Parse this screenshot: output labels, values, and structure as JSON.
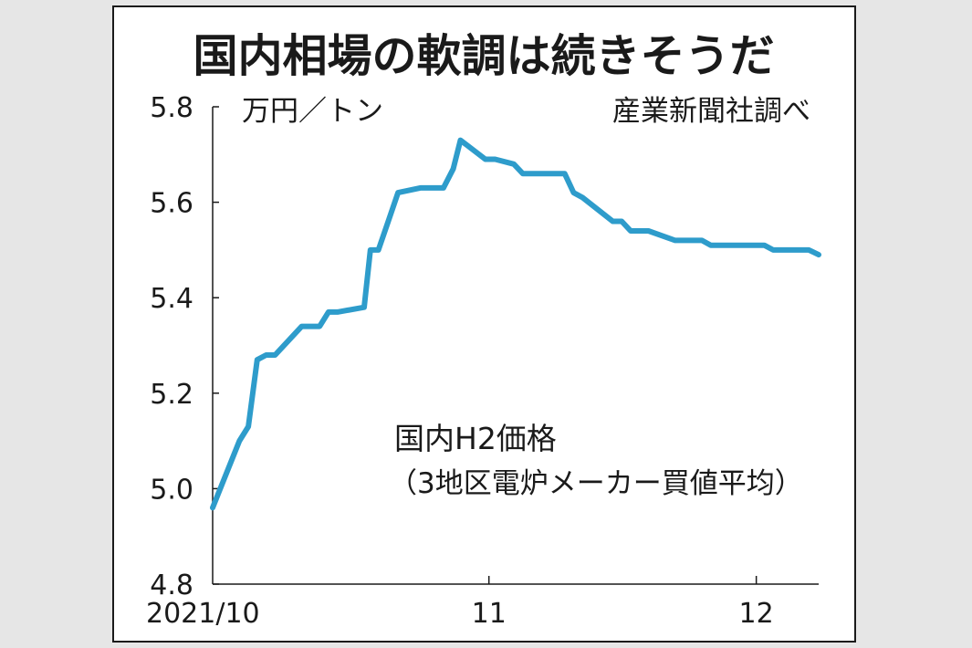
{
  "chart_data": {
    "type": "line",
    "title": "国内相場の軟調は続きそうだ",
    "ylabel": "万円／トン",
    "source": "産業新聞社調べ",
    "series_label": "国内H2価格",
    "series_note": "（3地区電炉メーカー買値平均）",
    "ylim": [
      4.8,
      5.8
    ],
    "yticks": [
      "4.8",
      "5.0",
      "5.2",
      "5.4",
      "5.6",
      "5.8"
    ],
    "xticks": [
      {
        "label": "2021/10",
        "day": 0
      },
      {
        "label": "11",
        "day": 31
      },
      {
        "label": "12",
        "day": 61
      }
    ],
    "xlim": [
      0,
      68
    ],
    "line_color": "#2e9ccb",
    "series": [
      {
        "points": [
          [
            0,
            4.96
          ],
          [
            3,
            5.1
          ],
          [
            4,
            5.13
          ],
          [
            5,
            5.27
          ],
          [
            6,
            5.28
          ],
          [
            7,
            5.28
          ],
          [
            10,
            5.34
          ],
          [
            12,
            5.34
          ],
          [
            13,
            5.37
          ],
          [
            14,
            5.37
          ],
          [
            17,
            5.38
          ],
          [
            17.7,
            5.5
          ],
          [
            18.6,
            5.5
          ],
          [
            19.7,
            5.56
          ],
          [
            20.8,
            5.62
          ],
          [
            23.3,
            5.63
          ],
          [
            25.9,
            5.63
          ],
          [
            27.0,
            5.67
          ],
          [
            27.8,
            5.73
          ],
          [
            30.6,
            5.69
          ],
          [
            31.7,
            5.69
          ],
          [
            33.8,
            5.68
          ],
          [
            34.8,
            5.66
          ],
          [
            39.5,
            5.66
          ],
          [
            40.5,
            5.62
          ],
          [
            41.5,
            5.61
          ],
          [
            44.9,
            5.56
          ],
          [
            45.9,
            5.56
          ],
          [
            46.9,
            5.54
          ],
          [
            48.9,
            5.54
          ],
          [
            51.9,
            5.52
          ],
          [
            54.9,
            5.52
          ],
          [
            55.9,
            5.51
          ],
          [
            61.9,
            5.51
          ],
          [
            62.9,
            5.5
          ],
          [
            66.9,
            5.5
          ],
          [
            68,
            5.49
          ]
        ]
      }
    ]
  }
}
